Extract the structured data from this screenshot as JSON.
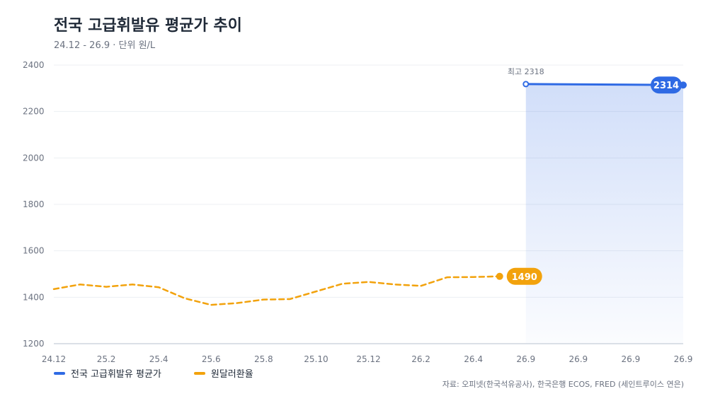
{
  "header": {
    "title": "전국 고급휘발유 평균가 추이",
    "subtitle": "24.12 - 26.9 · 단위 원/L"
  },
  "source": "자료: 오피넷(한국석유공사), 한국은행 ECOS, FRED (세인트루이스 연은)",
  "colors": {
    "gasoline": "#2f6ae4",
    "fx": "#f2a20c",
    "grid": "#eceff3",
    "axis": "#cfd6df"
  },
  "chart_data": {
    "type": "line",
    "title": "전국 고급휘발유 평균가 추이",
    "subtitle": "24.12 - 26.9 · 단위 원/L",
    "ylim": [
      1200,
      2400
    ],
    "yticks": [
      1200,
      1400,
      1600,
      1800,
      2000,
      2200,
      2400
    ],
    "x_tick_labels": [
      "24.12",
      "25.2",
      "25.4",
      "25.6",
      "25.8",
      "25.10",
      "25.12",
      "26.2",
      "26.4",
      "26.9",
      "26.9",
      "26.9",
      "26.9"
    ],
    "x_tick_positions": [
      0,
      2,
      4,
      6,
      8,
      10,
      12,
      14,
      16,
      18,
      20,
      22,
      24
    ],
    "grid": true,
    "legend_position": "bottom-left",
    "series": [
      {
        "name": "전국 고급휘발유 평균가",
        "style": "solid-area",
        "x": [
          18,
          24
        ],
        "values": [
          2318,
          2314
        ],
        "max_label": "최고 2318",
        "end_label": "2314"
      },
      {
        "name": "원달러환율",
        "style": "dashed",
        "x": [
          0,
          1,
          2,
          3,
          4,
          5,
          6,
          7,
          8,
          9,
          10,
          11,
          12,
          13,
          14,
          15,
          16,
          17
        ],
        "values": [
          1435,
          1455,
          1445,
          1455,
          1443,
          1395,
          1367,
          1375,
          1390,
          1392,
          1425,
          1458,
          1466,
          1455,
          1449,
          1486,
          1487,
          1490
        ],
        "end_label": "1490"
      }
    ]
  }
}
